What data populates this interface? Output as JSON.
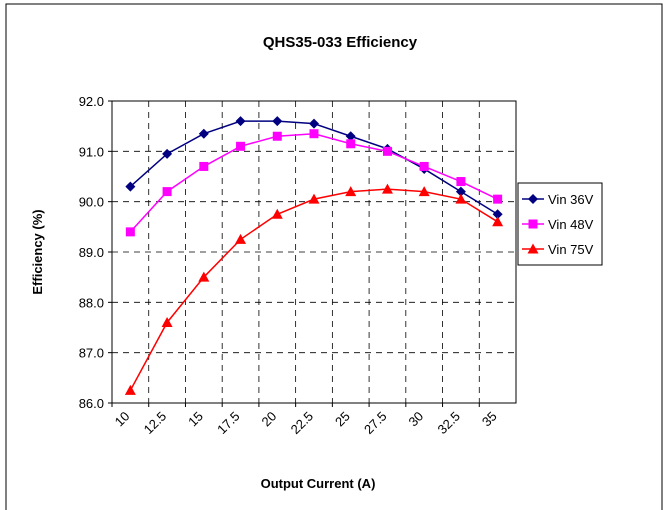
{
  "chart_data": {
    "type": "line",
    "title": "QHS35-033 Efficiency",
    "x_label": "Output Current (A)",
    "y_label": "Efficiency (%)",
    "categories": [
      "10",
      "12.5",
      "15",
      "17.5",
      "20",
      "22.5",
      "25",
      "27.5",
      "30",
      "32.5",
      "35"
    ],
    "series": [
      {
        "name": "Vin 36V",
        "color": "#000080",
        "marker": "diamond",
        "values": [
          90.3,
          90.95,
          91.35,
          91.6,
          91.6,
          91.55,
          91.3,
          91.05,
          90.65,
          90.2,
          89.75
        ]
      },
      {
        "name": "Vin 48V",
        "color": "#ff00ff",
        "marker": "square",
        "values": [
          89.4,
          90.2,
          90.7,
          91.1,
          91.3,
          91.35,
          91.15,
          91.0,
          90.7,
          90.4,
          90.05
        ]
      },
      {
        "name": "Vin 75V",
        "color": "#ff0000",
        "marker": "triangle",
        "values": [
          86.25,
          87.6,
          88.5,
          89.25,
          89.75,
          90.05,
          90.2,
          90.25,
          90.2,
          90.05,
          89.6
        ]
      }
    ],
    "ylim": [
      86,
      92
    ],
    "yticks": [
      {
        "value": 86,
        "label": "86.0"
      },
      {
        "value": 87,
        "label": "87.0"
      },
      {
        "value": 88,
        "label": "88.0"
      },
      {
        "value": 89,
        "label": "89.0"
      },
      {
        "value": 90,
        "label": "90.0"
      },
      {
        "value": 91,
        "label": "91.0"
      },
      {
        "value": 92,
        "label": "92.0"
      }
    ],
    "grid": true,
    "legend": "right"
  }
}
